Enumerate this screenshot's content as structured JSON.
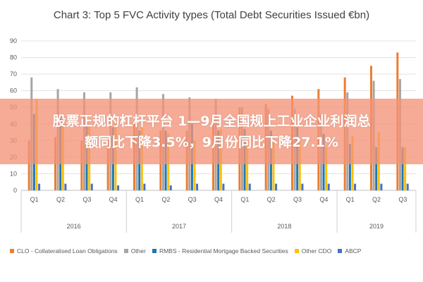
{
  "chart_data": {
    "type": "bar",
    "title": "Chart 3: Top 5 FVC Activity types (Total Debt Securities Issued €bn)",
    "xlabel": "",
    "ylabel": "",
    "ylim": [
      0,
      90
    ],
    "yticks": [
      0,
      10,
      20,
      30,
      40,
      50,
      60,
      70,
      80,
      90
    ],
    "grid": true,
    "legend_position": "bottom",
    "categories": [
      "Q1",
      "Q2",
      "Q3",
      "Q4",
      "Q1",
      "Q2",
      "Q3",
      "Q4",
      "Q1",
      "Q2",
      "Q3",
      "Q4",
      "Q1",
      "Q2",
      "Q3"
    ],
    "year_groups": [
      {
        "label": "2016",
        "start": 0,
        "end": 3
      },
      {
        "label": "2017",
        "start": 4,
        "end": 7
      },
      {
        "label": "2018",
        "start": 8,
        "end": 11
      },
      {
        "label": "2019",
        "start": 12,
        "end": 14
      }
    ],
    "series": [
      {
        "name": "CLO - Collateralised Loan Obligations",
        "color": "#ED7D31",
        "values": [
          30,
          32,
          30,
          31,
          40,
          36,
          36,
          42,
          50,
          52,
          57,
          61,
          68,
          75,
          83
        ]
      },
      {
        "name": "Other",
        "color": "#A5A5A5",
        "values": [
          68,
          61,
          59,
          59,
          62,
          58,
          56,
          55,
          50,
          49,
          49,
          46,
          59,
          66,
          67
        ]
      },
      {
        "name": "RMBS - Residential Mortgage Backed Securities",
        "color": "#1F77B4",
        "values": [
          46,
          45,
          41,
          38,
          36,
          36,
          40,
          36,
          37,
          36,
          38,
          34,
          28,
          26,
          26
        ]
      },
      {
        "name": "Other CDO",
        "color": "#FFC000",
        "values": [
          55,
          43,
          39,
          40,
          42,
          34,
          30,
          37,
          32,
          29,
          29,
          26,
          33,
          35,
          26
        ]
      },
      {
        "name": "ABCP",
        "color": "#4472C4",
        "values": [
          4,
          4,
          4,
          3,
          4,
          3,
          4,
          4,
          4,
          4,
          4,
          4,
          4,
          4,
          4
        ]
      }
    ]
  },
  "overlay": {
    "banner_text": "股票正规的杠杆平台 1—9月全国规上工业企业利润总\n额同比下降3.5%，9月份同比下降27.1%"
  }
}
